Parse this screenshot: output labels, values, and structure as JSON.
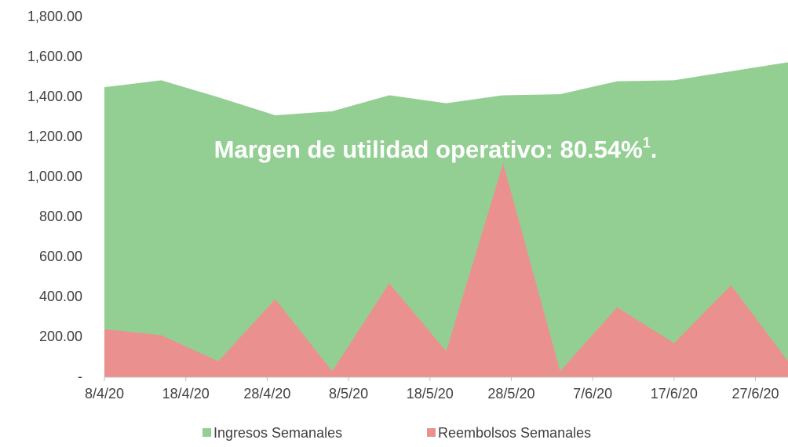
{
  "chart_data": {
    "type": "area",
    "x": [
      "8/4/20",
      "15/4/20",
      "22/4/20",
      "29/4/20",
      "6/5/20",
      "13/5/20",
      "20/5/20",
      "27/5/20",
      "3/6/20",
      "10/6/20",
      "17/6/20",
      "24/6/20",
      "1/7/20"
    ],
    "series": [
      {
        "name": "Ingresos Semanales",
        "color": "#93cf93",
        "values": [
          1450,
          1485,
          1400,
          1310,
          1330,
          1410,
          1370,
          1410,
          1415,
          1480,
          1485,
          1530,
          1575
        ]
      },
      {
        "name": "Reembolsos Semanales",
        "color": "#ea9190",
        "values": [
          240,
          210,
          80,
          390,
          30,
          470,
          130,
          1070,
          30,
          350,
          170,
          460,
          80
        ]
      }
    ],
    "xlim": [
      "8/4/20",
      "1/7/20"
    ],
    "xticks": [
      "8/4/20",
      "18/4/20",
      "28/4/20",
      "8/5/20",
      "18/5/20",
      "28/5/20",
      "7/6/20",
      "17/6/20",
      "27/6/20"
    ],
    "ylim": [
      0,
      1800
    ],
    "yticks": [
      {
        "value": 0,
        "label": "-"
      },
      {
        "value": 200,
        "label": "200.00"
      },
      {
        "value": 400,
        "label": "400.00"
      },
      {
        "value": 600,
        "label": "600.00"
      },
      {
        "value": 800,
        "label": "800.00"
      },
      {
        "value": 1000,
        "label": "1,000.00"
      },
      {
        "value": 1200,
        "label": "1,200.00"
      },
      {
        "value": 1400,
        "label": "1,400.00"
      },
      {
        "value": 1600,
        "label": "1,600.00"
      },
      {
        "value": 1800,
        "label": "1,800.00"
      }
    ],
    "annotation": {
      "text": "Margen de utilidad operativo: 80.54%",
      "superscript": "1",
      "suffix": "."
    },
    "legend": "bottom"
  }
}
